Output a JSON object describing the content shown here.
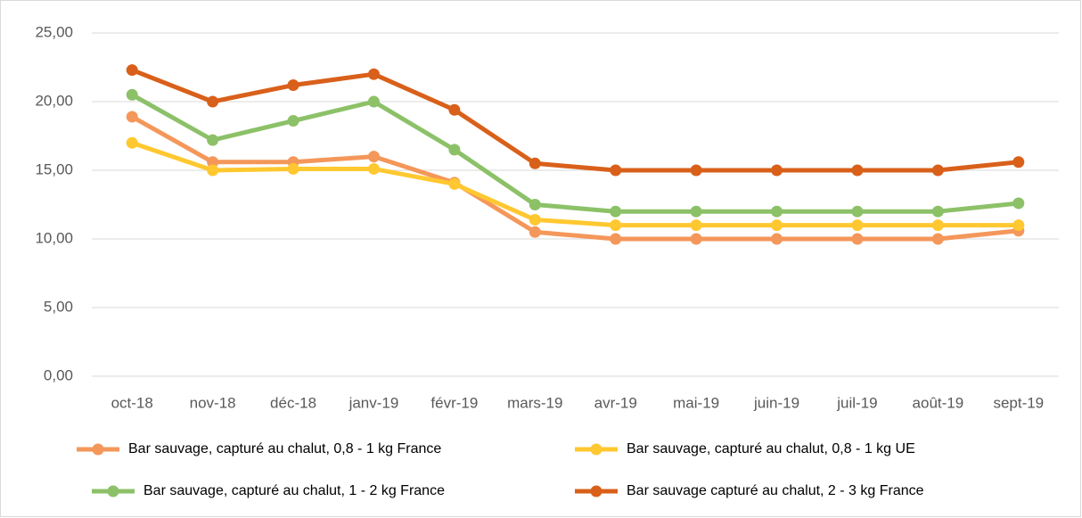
{
  "chart_data": {
    "type": "line",
    "categories": [
      "oct-18",
      "nov-18",
      "déc-18",
      "janv-19",
      "févr-19",
      "mars-19",
      "avr-19",
      "mai-19",
      "juin-19",
      "juil-19",
      "août-19",
      "sept-19"
    ],
    "series": [
      {
        "name": "Bar sauvage, capturé au chalut, 0,8 - 1 kg France",
        "color": "#F4975A",
        "values": [
          18.9,
          15.6,
          15.6,
          16.0,
          14.1,
          10.5,
          10.0,
          10.0,
          10.0,
          10.0,
          10.0,
          10.6
        ]
      },
      {
        "name": "Bar sauvage, capturé au chalut, 0,8 - 1 kg UE",
        "color": "#FFC830",
        "values": [
          17.0,
          15.0,
          15.1,
          15.1,
          14.0,
          11.4,
          11.0,
          11.0,
          11.0,
          11.0,
          11.0,
          11.0
        ]
      },
      {
        "name": "Bar sauvage, capturé au chalut, 1 - 2 kg France",
        "color": "#8CC168",
        "values": [
          20.5,
          17.2,
          18.6,
          20.0,
          16.5,
          12.5,
          12.0,
          12.0,
          12.0,
          12.0,
          12.0,
          12.6
        ]
      },
      {
        "name": "Bar sauvage capturé au chalut, 2 - 3 kg France",
        "color": "#D9601A",
        "values": [
          22.3,
          20.0,
          21.2,
          22.0,
          19.4,
          15.5,
          15.0,
          15.0,
          15.0,
          15.0,
          15.0,
          15.6
        ]
      }
    ],
    "ylim": [
      0,
      25
    ],
    "yticks": [
      {
        "value": 0,
        "label": "0,00"
      },
      {
        "value": 5,
        "label": "5,00"
      },
      {
        "value": 10,
        "label": "10,00"
      },
      {
        "value": 15,
        "label": "15,00"
      },
      {
        "value": 20,
        "label": "20,00"
      },
      {
        "value": 25,
        "label": "25,00"
      }
    ],
    "grid": true
  }
}
